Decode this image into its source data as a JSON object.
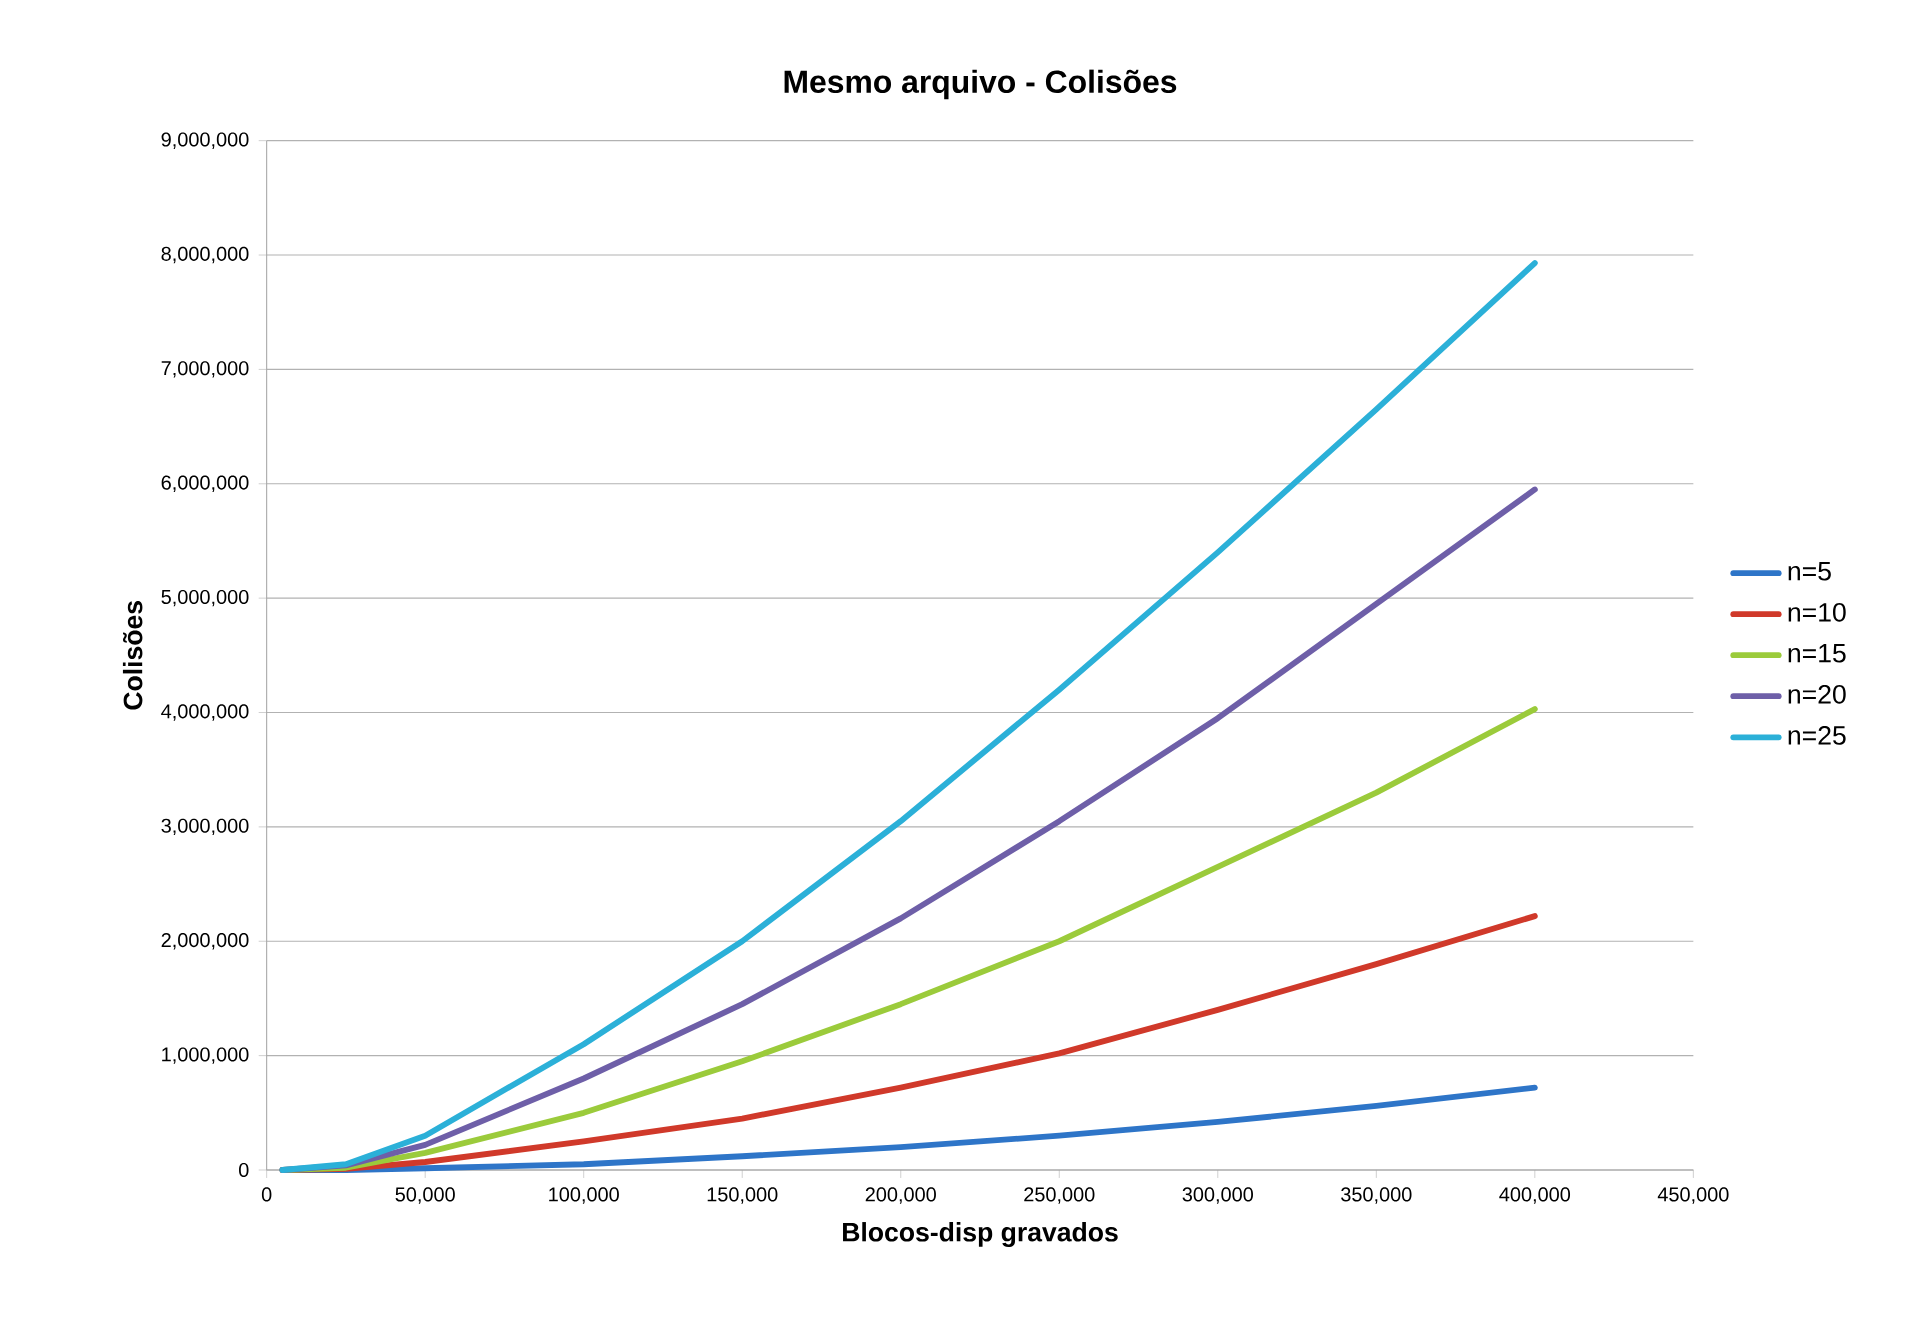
{
  "chart_data": {
    "type": "line",
    "title": "Mesmo arquivo - Colisões",
    "xlabel": "Blocos-disp gravados",
    "ylabel": "Colisões",
    "x": [
      5000,
      25000,
      50000,
      100000,
      150000,
      200000,
      250000,
      300000,
      350000,
      400000
    ],
    "series": [
      {
        "name": "n=5",
        "color": "#2e75c8",
        "values": [
          0,
          0,
          15000,
          50000,
          120000,
          200000,
          300000,
          420000,
          560000,
          720000
        ]
      },
      {
        "name": "n=10",
        "color": "#d0392a",
        "values": [
          0,
          10000,
          70000,
          250000,
          450000,
          720000,
          1020000,
          1400000,
          1800000,
          2220000
        ]
      },
      {
        "name": "n=15",
        "color": "#9bcb3b",
        "values": [
          0,
          20000,
          150000,
          500000,
          950000,
          1450000,
          2000000,
          2650000,
          3300000,
          4030000
        ]
      },
      {
        "name": "n=20",
        "color": "#6e5fa8",
        "values": [
          0,
          40000,
          220000,
          800000,
          1450000,
          2200000,
          3050000,
          3950000,
          4950000,
          5950000
        ]
      },
      {
        "name": "n=25",
        "color": "#2bb0d8",
        "values": [
          0,
          50000,
          300000,
          1100000,
          2000000,
          3050000,
          4200000,
          5400000,
          6650000,
          7930000
        ]
      }
    ],
    "xlim": [
      0,
      450000
    ],
    "xticks": [
      0,
      {
        "value": 50000,
        "label": "50,000"
      },
      {
        "value": 100000,
        "label": "100,000"
      },
      {
        "value": 150000,
        "label": "150,000"
      },
      {
        "value": 200000,
        "label": "200,000"
      },
      {
        "value": 250000,
        "label": "250,000"
      },
      {
        "value": 300000,
        "label": "300,000"
      },
      {
        "value": 350000,
        "label": "350,000"
      },
      {
        "value": 400000,
        "label": "400,000"
      },
      {
        "value": 450000,
        "label": "450,000"
      }
    ],
    "ylim": [
      0,
      9000000
    ],
    "yticks": [
      0,
      {
        "value": 1000000,
        "label": "1,000,000"
      },
      {
        "value": 2000000,
        "label": "2,000,000"
      },
      {
        "value": 3000000,
        "label": "3,000,000"
      },
      {
        "value": 4000000,
        "label": "4,000,000"
      },
      {
        "value": 5000000,
        "label": "5,000,000"
      },
      {
        "value": 6000000,
        "label": "6,000,000"
      },
      {
        "value": 7000000,
        "label": "7,000,000"
      },
      {
        "value": 8000000,
        "label": "8,000,000"
      },
      {
        "value": 9000000,
        "label": "9,000,000"
      }
    ],
    "grid": "y",
    "legend": "right",
    "marker": "none",
    "line_style": "solid"
  }
}
